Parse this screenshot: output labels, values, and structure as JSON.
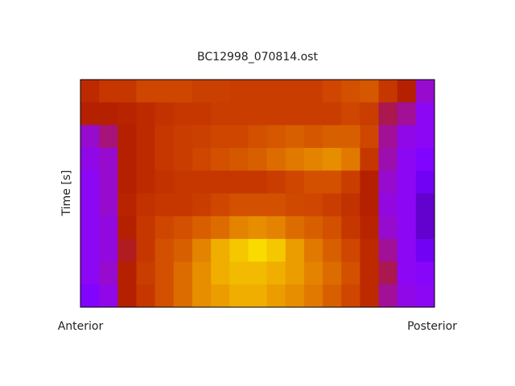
{
  "chart_data": {
    "type": "heatmap",
    "title": "BC12998_070814.ost",
    "y_label": "Time [s]",
    "x_start_label": "Anterior",
    "x_end_label": "Posterior",
    "colormap": "gnuplot",
    "values": [
      [
        0.55,
        0.6,
        0.6,
        0.65,
        0.65,
        0.65,
        0.63,
        0.63,
        0.62,
        0.62,
        0.62,
        0.62,
        0.62,
        0.65,
        0.68,
        0.7,
        0.6,
        0.5,
        0.35
      ],
      [
        0.5,
        0.5,
        0.52,
        0.55,
        0.58,
        0.6,
        0.6,
        0.62,
        0.62,
        0.62,
        0.62,
        0.62,
        0.62,
        0.62,
        0.65,
        0.62,
        0.45,
        0.4,
        0.3
      ],
      [
        0.35,
        0.42,
        0.5,
        0.55,
        0.6,
        0.62,
        0.63,
        0.65,
        0.65,
        0.68,
        0.7,
        0.72,
        0.7,
        0.72,
        0.72,
        0.65,
        0.4,
        0.32,
        0.3
      ],
      [
        0.32,
        0.35,
        0.5,
        0.55,
        0.6,
        0.62,
        0.65,
        0.68,
        0.7,
        0.72,
        0.75,
        0.78,
        0.8,
        0.82,
        0.78,
        0.6,
        0.38,
        0.3,
        0.25
      ],
      [
        0.3,
        0.35,
        0.5,
        0.55,
        0.58,
        0.6,
        0.6,
        0.6,
        0.6,
        0.6,
        0.62,
        0.65,
        0.68,
        0.68,
        0.62,
        0.5,
        0.35,
        0.3,
        0.2
      ],
      [
        0.3,
        0.35,
        0.52,
        0.58,
        0.6,
        0.6,
        0.62,
        0.65,
        0.68,
        0.68,
        0.68,
        0.66,
        0.65,
        0.62,
        0.58,
        0.5,
        0.33,
        0.3,
        0.15
      ],
      [
        0.3,
        0.33,
        0.5,
        0.6,
        0.65,
        0.68,
        0.72,
        0.75,
        0.8,
        0.82,
        0.8,
        0.75,
        0.72,
        0.68,
        0.6,
        0.52,
        0.35,
        0.3,
        0.15
      ],
      [
        0.3,
        0.33,
        0.48,
        0.6,
        0.68,
        0.72,
        0.8,
        0.88,
        0.92,
        0.95,
        0.92,
        0.85,
        0.78,
        0.72,
        0.65,
        0.55,
        0.4,
        0.3,
        0.2
      ],
      [
        0.3,
        0.35,
        0.5,
        0.62,
        0.68,
        0.75,
        0.82,
        0.88,
        0.9,
        0.9,
        0.88,
        0.85,
        0.8,
        0.75,
        0.68,
        0.55,
        0.45,
        0.3,
        0.28
      ],
      [
        0.25,
        0.32,
        0.5,
        0.6,
        0.68,
        0.75,
        0.82,
        0.85,
        0.88,
        0.88,
        0.85,
        0.82,
        0.78,
        0.72,
        0.65,
        0.55,
        0.4,
        0.32,
        0.3
      ]
    ]
  }
}
